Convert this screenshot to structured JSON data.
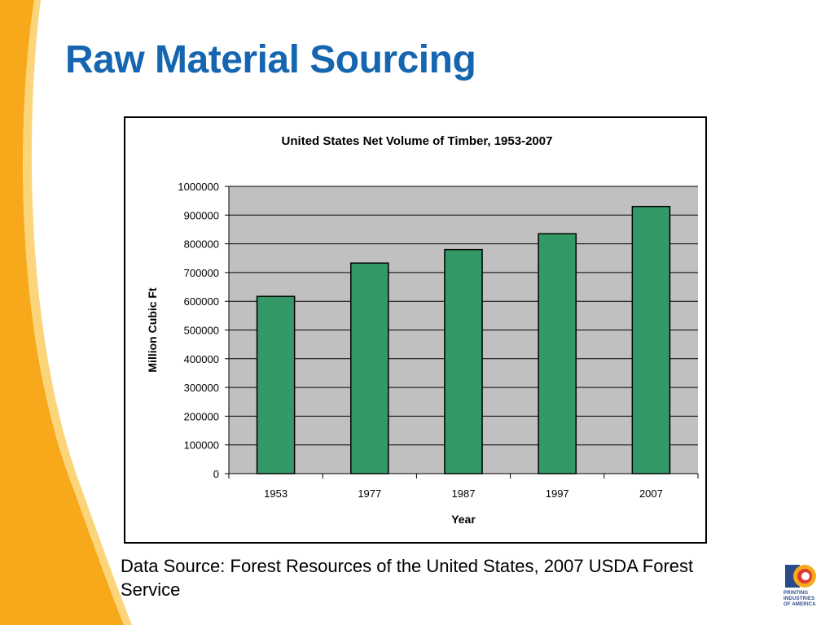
{
  "slide": {
    "title": "Raw Material Sourcing",
    "source_note": "Data Source: Forest Resources of the United States, 2007 USDA Forest Service",
    "logo_lines": [
      "PRINTING",
      "INDUSTRIES",
      "OF AMERICA"
    ]
  },
  "colors": {
    "title": "#1565b0",
    "swoosh_outer": "#f7a81b",
    "swoosh_inner": "#fcd57a",
    "bar_fill": "#339966",
    "plot_bg": "#c0c0c0"
  },
  "icons": {
    "logo": "printing-industries-of-america-logo"
  },
  "chart_data": {
    "type": "bar",
    "title": "United States Net Volume of Timber, 1953-2007",
    "xlabel": "Year",
    "ylabel": "Million Cubic Ft",
    "categories": [
      "1953",
      "1977",
      "1987",
      "1997",
      "2007"
    ],
    "values": [
      617000,
      733000,
      780000,
      835000,
      930000
    ],
    "ylim": [
      0,
      1000000
    ],
    "yticks": [
      0,
      100000,
      200000,
      300000,
      400000,
      500000,
      600000,
      700000,
      800000,
      900000,
      1000000
    ],
    "grid": true,
    "legend": "none"
  }
}
